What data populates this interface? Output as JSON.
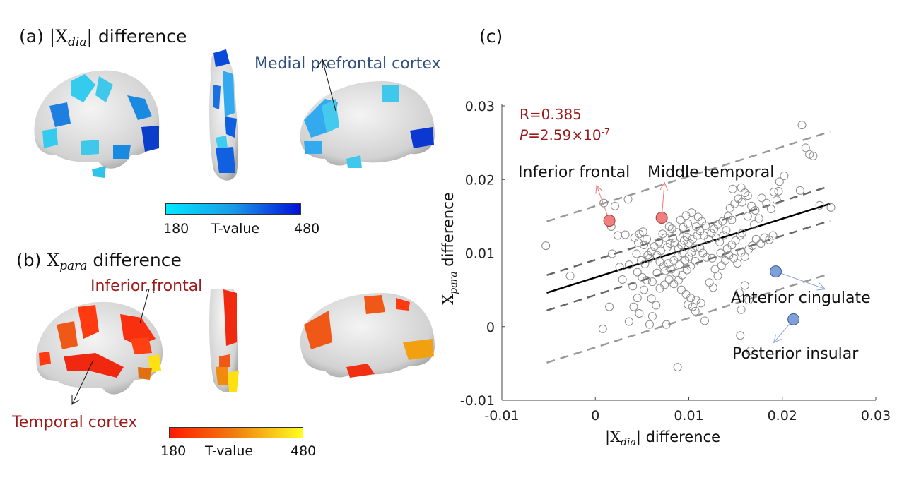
{
  "panel_a": {
    "label": "(a)",
    "title_prefix": "|X",
    "title_sub": "dia",
    "title_suffix": "| difference",
    "annotation": "Medial prefrontal cortex",
    "annotation_color": "#2f4f7f",
    "colorbar": {
      "min": "180",
      "label": "T-value",
      "max": "480",
      "color_low": "#00e8ff",
      "color_high": "#0010d8"
    }
  },
  "panel_b": {
    "label": "(b)",
    "title_prefix": "X",
    "title_sub": "para",
    "title_suffix": " difference",
    "annotations": [
      "Inferior frontal",
      "Temporal cortex"
    ],
    "annotation_color": "#9b1b1b",
    "colorbar": {
      "min": "180",
      "label": "T-value",
      "max": "480",
      "color_low": "#ff1a00",
      "color_high": "#ffff20"
    }
  },
  "panel_c": {
    "label": "(c)"
  },
  "chart_data": {
    "type": "scatter",
    "title": "",
    "xlabel": "|X_dia| difference",
    "xlabel_prefix": "|X",
    "xlabel_sub": "dia",
    "xlabel_suffix": "| difference",
    "ylabel": "X_para difference",
    "ylabel_prefix": "X",
    "ylabel_sub": "para",
    "ylabel_suffix": " difference",
    "xlim": [
      -0.01,
      0.03
    ],
    "ylim": [
      -0.01,
      0.03
    ],
    "xticks": [
      "-0.01",
      "0",
      "0.01",
      "0.02",
      "0.03"
    ],
    "yticks": [
      "-0.01",
      "0",
      "0.01",
      "0.02",
      "0.03"
    ],
    "grid": false,
    "stats": {
      "R": "R=0.385",
      "P_prefix": "P",
      "P_value": "=2.59×10",
      "P_exp": "-7",
      "color": "#9b1b1b"
    },
    "regression": {
      "x": [
        -0.0052,
        0.0251
      ],
      "y": [
        0.0046,
        0.0167
      ]
    },
    "ci_upper": {
      "x": [
        -0.0052,
        0.0251
      ],
      "y": [
        0.007,
        0.0191
      ]
    },
    "ci_lower": {
      "x": [
        -0.0052,
        0.0251
      ],
      "y": [
        0.0022,
        0.0144
      ]
    },
    "pi_upper": {
      "x": [
        -0.0052,
        0.0251
      ],
      "y": [
        0.0143,
        0.0265
      ]
    },
    "pi_lower": {
      "x": [
        -0.0052,
        0.0251
      ],
      "y": [
        -0.0049,
        0.0072
      ]
    },
    "highlighted": [
      {
        "name": "Inferior frontal",
        "x": 0.0015,
        "y": 0.0144,
        "color": "#f08080",
        "label_dir": "up"
      },
      {
        "name": "Middle temporal",
        "x": 0.0071,
        "y": 0.0148,
        "color": "#f08080",
        "label_dir": "up"
      },
      {
        "name": "Anterior cingulate",
        "x": 0.0193,
        "y": 0.0075,
        "color": "#7f9fd8",
        "label_dir": "right"
      },
      {
        "name": "Posterior insular",
        "x": 0.0212,
        "y": 0.001,
        "color": "#7f9fd8",
        "label_dir": "down"
      }
    ],
    "points": [
      [
        -0.0053,
        0.011
      ],
      [
        -0.0027,
        0.0069
      ],
      [
        0.0009,
        0.0168
      ],
      [
        0.0021,
        0.0164
      ],
      [
        0.0017,
        0.0136
      ],
      [
        0.0024,
        0.0124
      ],
      [
        0.0035,
        0.0173
      ],
      [
        0.0032,
        0.0125
      ],
      [
        0.0018,
        0.0099
      ],
      [
        0.0026,
        0.0081
      ],
      [
        0.0029,
        0.0064
      ],
      [
        0.0036,
        0.0084
      ],
      [
        0.0042,
        0.0121
      ],
      [
        0.0047,
        0.0126
      ],
      [
        0.0051,
        0.0129
      ],
      [
        0.0046,
        0.0114
      ],
      [
        0.0052,
        0.0111
      ],
      [
        0.0055,
        0.0119
      ],
      [
        0.0044,
        0.0099
      ],
      [
        0.0049,
        0.009
      ],
      [
        0.0056,
        0.0097
      ],
      [
        0.0053,
        0.0085
      ],
      [
        0.006,
        0.0102
      ],
      [
        0.0058,
        0.0093
      ],
      [
        0.0045,
        0.0074
      ],
      [
        0.005,
        0.0067
      ],
      [
        0.0055,
        0.0063
      ],
      [
        0.0061,
        0.0061
      ],
      [
        0.0066,
        0.0073
      ],
      [
        0.0052,
        0.005
      ],
      [
        0.004,
        0.0055
      ],
      [
        0.0045,
        0.0039
      ],
      [
        0.0041,
        0.0027
      ],
      [
        0.0047,
        0.0018
      ],
      [
        0.0036,
        0.0007
      ],
      [
        0.0015,
        0.0027
      ],
      [
        0.0008,
        -0.0003
      ],
      [
        0.006,
        0.0038
      ],
      [
        0.0065,
        0.0029
      ],
      [
        0.0058,
        0.0003
      ],
      [
        0.0088,
        -0.0055
      ],
      [
        0.0063,
        0.0109
      ],
      [
        0.0068,
        0.0115
      ],
      [
        0.0072,
        0.0126
      ],
      [
        0.0075,
        0.0121
      ],
      [
        0.007,
        0.0103
      ],
      [
        0.0066,
        0.0097
      ],
      [
        0.0077,
        0.0108
      ],
      [
        0.008,
        0.0113
      ],
      [
        0.0083,
        0.012
      ],
      [
        0.0087,
        0.0128
      ],
      [
        0.0079,
        0.0136
      ],
      [
        0.0082,
        0.0133
      ],
      [
        0.0085,
        0.0114
      ],
      [
        0.0089,
        0.0106
      ],
      [
        0.0092,
        0.0111
      ],
      [
        0.0095,
        0.0117
      ],
      [
        0.0098,
        0.0122
      ],
      [
        0.0093,
        0.01
      ],
      [
        0.0088,
        0.0095
      ],
      [
        0.0084,
        0.009
      ],
      [
        0.0078,
        0.0086
      ],
      [
        0.0073,
        0.0082
      ],
      [
        0.0069,
        0.0088
      ],
      [
        0.0075,
        0.0076
      ],
      [
        0.0081,
        0.0078
      ],
      [
        0.0086,
        0.0073
      ],
      [
        0.009,
        0.0084
      ],
      [
        0.0096,
        0.009
      ],
      [
        0.01,
        0.0095
      ],
      [
        0.0103,
        0.0101
      ],
      [
        0.0106,
        0.0107
      ],
      [
        0.0101,
        0.0113
      ],
      [
        0.0104,
        0.0119
      ],
      [
        0.0109,
        0.0124
      ],
      [
        0.0112,
        0.013
      ],
      [
        0.0108,
        0.0136
      ],
      [
        0.0099,
        0.014
      ],
      [
        0.0094,
        0.0135
      ],
      [
        0.0091,
        0.0145
      ],
      [
        0.0097,
        0.0151
      ],
      [
        0.0103,
        0.0155
      ],
      [
        0.011,
        0.0149
      ],
      [
        0.0114,
        0.0143
      ],
      [
        0.0118,
        0.0137
      ],
      [
        0.0116,
        0.0124
      ],
      [
        0.0121,
        0.0119
      ],
      [
        0.0124,
        0.0127
      ],
      [
        0.0127,
        0.0133
      ],
      [
        0.0131,
        0.0139
      ],
      [
        0.0129,
        0.0121
      ],
      [
        0.0133,
        0.0115
      ],
      [
        0.0137,
        0.0124
      ],
      [
        0.014,
        0.0131
      ],
      [
        0.0136,
        0.0143
      ],
      [
        0.0142,
        0.015
      ],
      [
        0.0146,
        0.0145
      ],
      [
        0.0144,
        0.0161
      ],
      [
        0.0149,
        0.0167
      ],
      [
        0.0153,
        0.0174
      ],
      [
        0.0157,
        0.0169
      ],
      [
        0.016,
        0.0182
      ],
      [
        0.0147,
        0.0187
      ],
      [
        0.0156,
        0.0189
      ],
      [
        0.0163,
        0.0178
      ],
      [
        0.0167,
        0.0164
      ],
      [
        0.0171,
        0.0158
      ],
      [
        0.0163,
        0.015
      ],
      [
        0.0175,
        0.0147
      ],
      [
        0.017,
        0.0139
      ],
      [
        0.0112,
        0.0107
      ],
      [
        0.0115,
        0.01
      ],
      [
        0.0119,
        0.0094
      ],
      [
        0.0107,
        0.0089
      ],
      [
        0.0102,
        0.0082
      ],
      [
        0.0098,
        0.0077
      ],
      [
        0.0093,
        0.007
      ],
      [
        0.0089,
        0.0063
      ],
      [
        0.0084,
        0.0058
      ],
      [
        0.0079,
        0.0064
      ],
      [
        0.0074,
        0.0057
      ],
      [
        0.0069,
        0.0052
      ],
      [
        0.0092,
        0.005
      ],
      [
        0.0097,
        0.0044
      ],
      [
        0.0102,
        0.0039
      ],
      [
        0.0099,
        0.003
      ],
      [
        0.0104,
        0.0027
      ],
      [
        0.0108,
        0.0036
      ],
      [
        0.0113,
        0.0032
      ],
      [
        0.0107,
        0.0021
      ],
      [
        0.0117,
        0.0008
      ],
      [
        0.0126,
        0.0053
      ],
      [
        0.0122,
        0.006
      ],
      [
        0.0131,
        0.0069
      ],
      [
        0.0128,
        0.0078
      ],
      [
        0.0135,
        0.0083
      ],
      [
        0.0139,
        0.009
      ],
      [
        0.0143,
        0.0097
      ],
      [
        0.0148,
        0.0093
      ],
      [
        0.0152,
        0.0086
      ],
      [
        0.0156,
        0.0101
      ],
      [
        0.016,
        0.0095
      ],
      [
        0.0164,
        0.0105
      ],
      [
        0.0168,
        0.011
      ],
      [
        0.0172,
        0.0119
      ],
      [
        0.0177,
        0.0113
      ],
      [
        0.0181,
        0.0121
      ],
      [
        0.0186,
        0.0118
      ],
      [
        0.019,
        0.0124
      ],
      [
        0.0155,
        0.0124
      ],
      [
        0.015,
        0.0117
      ],
      [
        0.0146,
        0.0111
      ],
      [
        0.0141,
        0.0106
      ],
      [
        0.0134,
        0.01
      ],
      [
        0.0125,
        0.0093
      ],
      [
        0.0157,
        0.0127
      ],
      [
        0.0178,
        0.0175
      ],
      [
        0.0183,
        0.0168
      ],
      [
        0.0191,
        0.0183
      ],
      [
        0.0196,
        0.0184
      ],
      [
        0.0197,
        0.0197
      ],
      [
        0.0194,
        0.0172
      ],
      [
        0.0188,
        0.016
      ],
      [
        0.0202,
        0.0205
      ],
      [
        0.0219,
        0.0185
      ],
      [
        0.0225,
        0.0243
      ],
      [
        0.0229,
        0.0234
      ],
      [
        0.0233,
        0.0232
      ],
      [
        0.0221,
        0.0274
      ],
      [
        0.024,
        0.0165
      ],
      [
        0.0252,
        0.0162
      ],
      [
        0.0154,
        0.0046
      ],
      [
        0.0156,
        0.0023
      ],
      [
        0.0155,
        -0.0012
      ],
      [
        0.0166,
        -0.0033
      ],
      [
        0.016,
        0.0056
      ],
      [
        0.0164,
        0.0036
      ],
      [
        0.0076,
        0.0003
      ],
      [
        0.0061,
        0.0014
      ]
    ]
  }
}
